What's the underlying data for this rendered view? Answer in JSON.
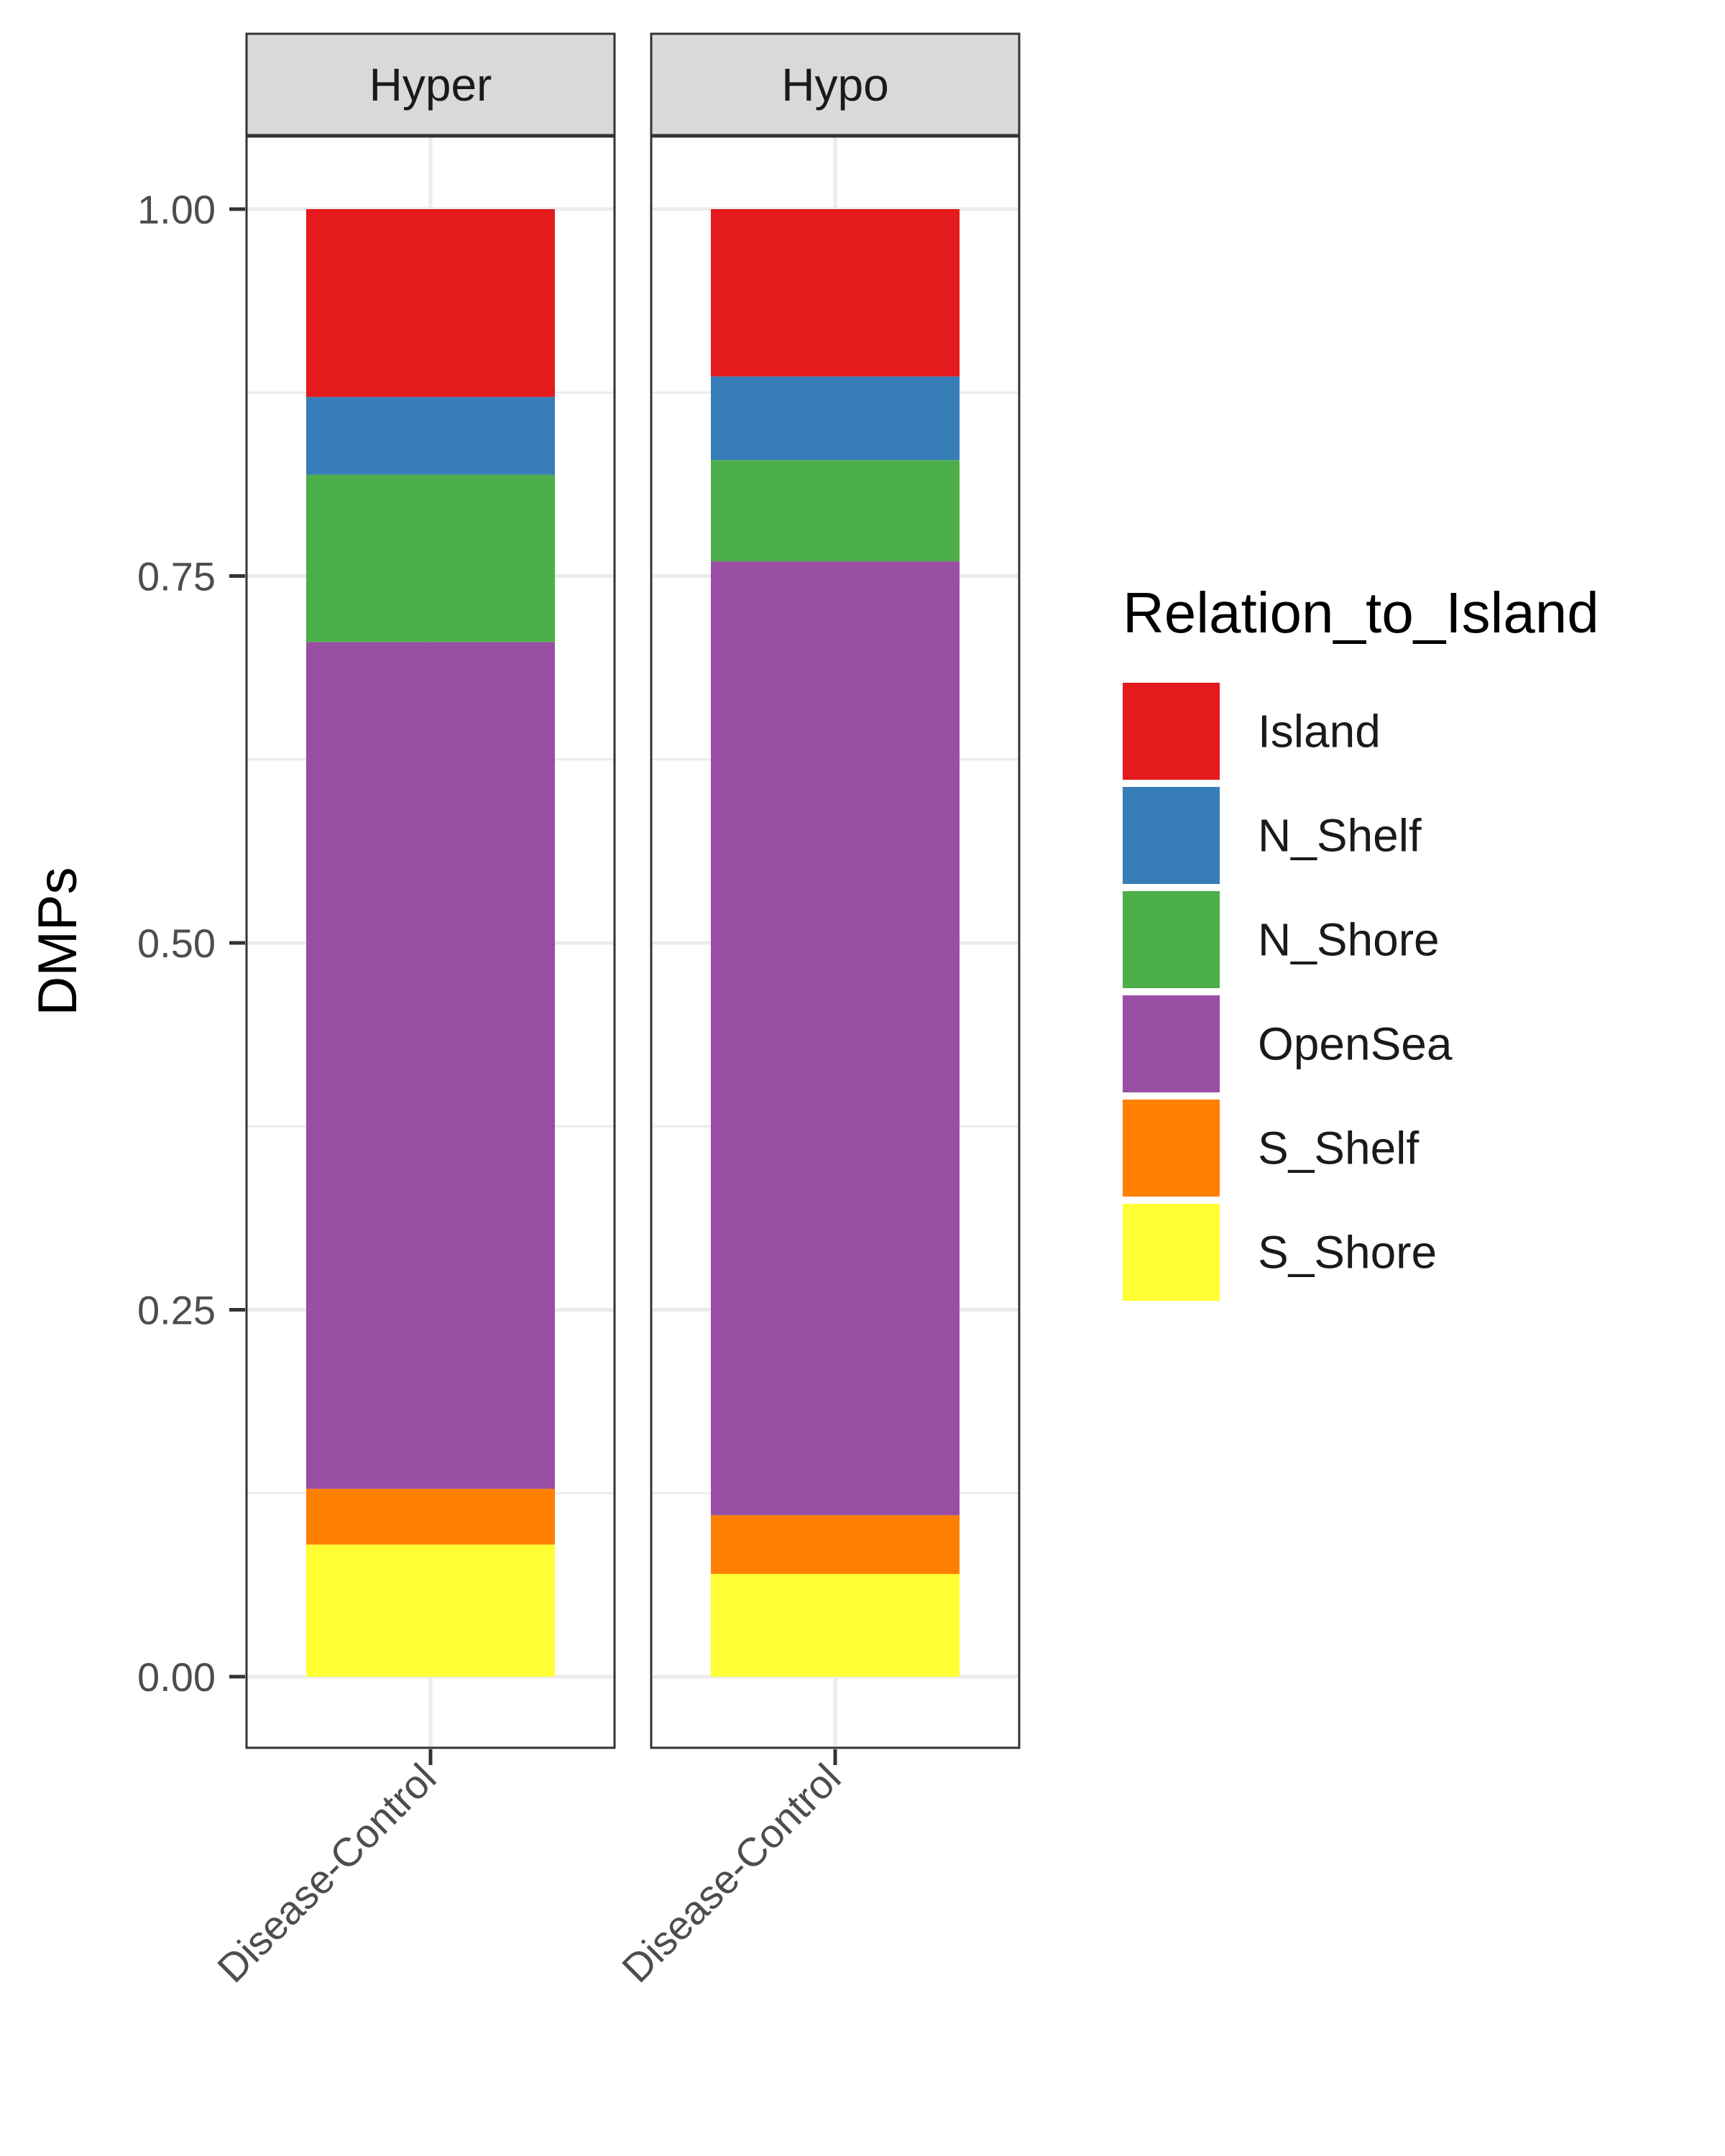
{
  "chart_data": {
    "type": "bar",
    "stacked": true,
    "position": "fill",
    "ylabel": "DMPs",
    "xlabel": "",
    "ylim": [
      0,
      1
    ],
    "y_ticks": [
      "0.00",
      "0.25",
      "0.50",
      "0.75",
      "1.00"
    ],
    "y_tick_values": [
      0,
      0.25,
      0.5,
      0.75,
      1.0
    ],
    "grid": true,
    "legend_position": "right",
    "legend_title": "Relation_to_Island",
    "categories": [
      "Disease-Control"
    ],
    "stack_order_bottom_to_top": [
      "S_Shore",
      "S_Shelf",
      "OpenSea",
      "N_Shore",
      "N_Shelf",
      "Island"
    ],
    "series": [
      {
        "name": "Island",
        "color": "#E41A1C"
      },
      {
        "name": "N_Shelf",
        "color": "#377EB8"
      },
      {
        "name": "N_Shore",
        "color": "#4DAF4A"
      },
      {
        "name": "OpenSea",
        "color": "#984EA3"
      },
      {
        "name": "S_Shelf",
        "color": "#FF7F00"
      },
      {
        "name": "S_Shore",
        "color": "#FFFF33"
      }
    ],
    "facets": [
      {
        "label": "Hyper",
        "category": "Disease-Control",
        "values": {
          "S_Shore": 0.09,
          "S_Shelf": 0.038,
          "OpenSea": 0.577,
          "N_Shore": 0.114,
          "N_Shelf": 0.053,
          "Island": 0.128
        }
      },
      {
        "label": "Hypo",
        "category": "Disease-Control",
        "values": {
          "S_Shore": 0.07,
          "S_Shelf": 0.04,
          "OpenSea": 0.65,
          "N_Shore": 0.069,
          "N_Shelf": 0.057,
          "Island": 0.114
        }
      }
    ]
  }
}
